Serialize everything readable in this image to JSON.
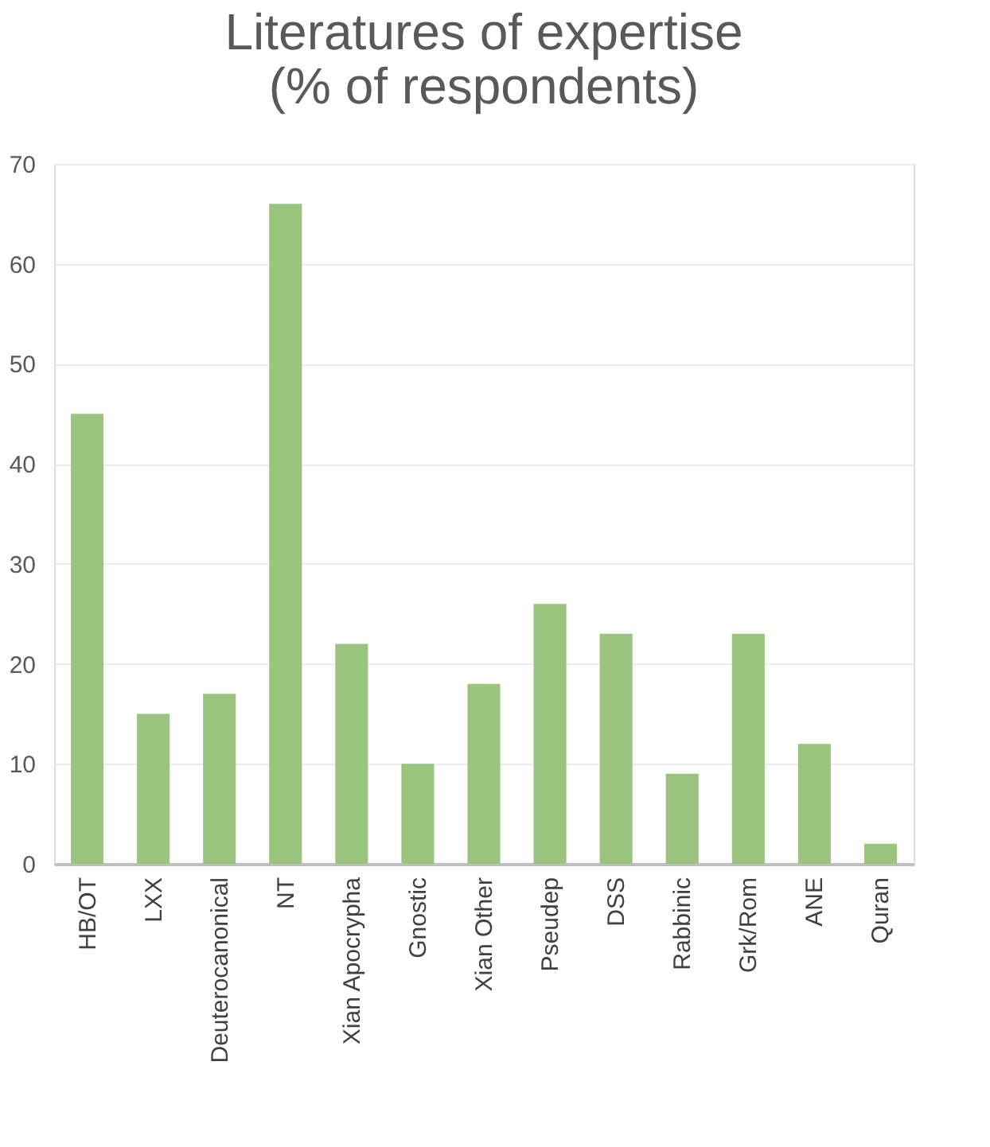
{
  "chart_data": {
    "type": "bar",
    "title": [
      "Literatures of expertise",
      "(% of respondents)"
    ],
    "categories": [
      "HB/OT",
      "LXX",
      "Deuterocanonical",
      "NT",
      "Xian Apocrypha",
      "Gnostic",
      "Xian Other",
      "Pseudep",
      "DSS",
      "Rabbinic",
      "Grk/Rom",
      "ANE",
      "Quran"
    ],
    "values": [
      45,
      15,
      17,
      66,
      22,
      10,
      18,
      26,
      23,
      9,
      23,
      12,
      2
    ],
    "color": "#9bc47e",
    "ylim": [
      0,
      70
    ],
    "yticks": [
      0,
      10,
      20,
      30,
      40,
      50,
      60,
      70
    ],
    "grid": "y"
  }
}
